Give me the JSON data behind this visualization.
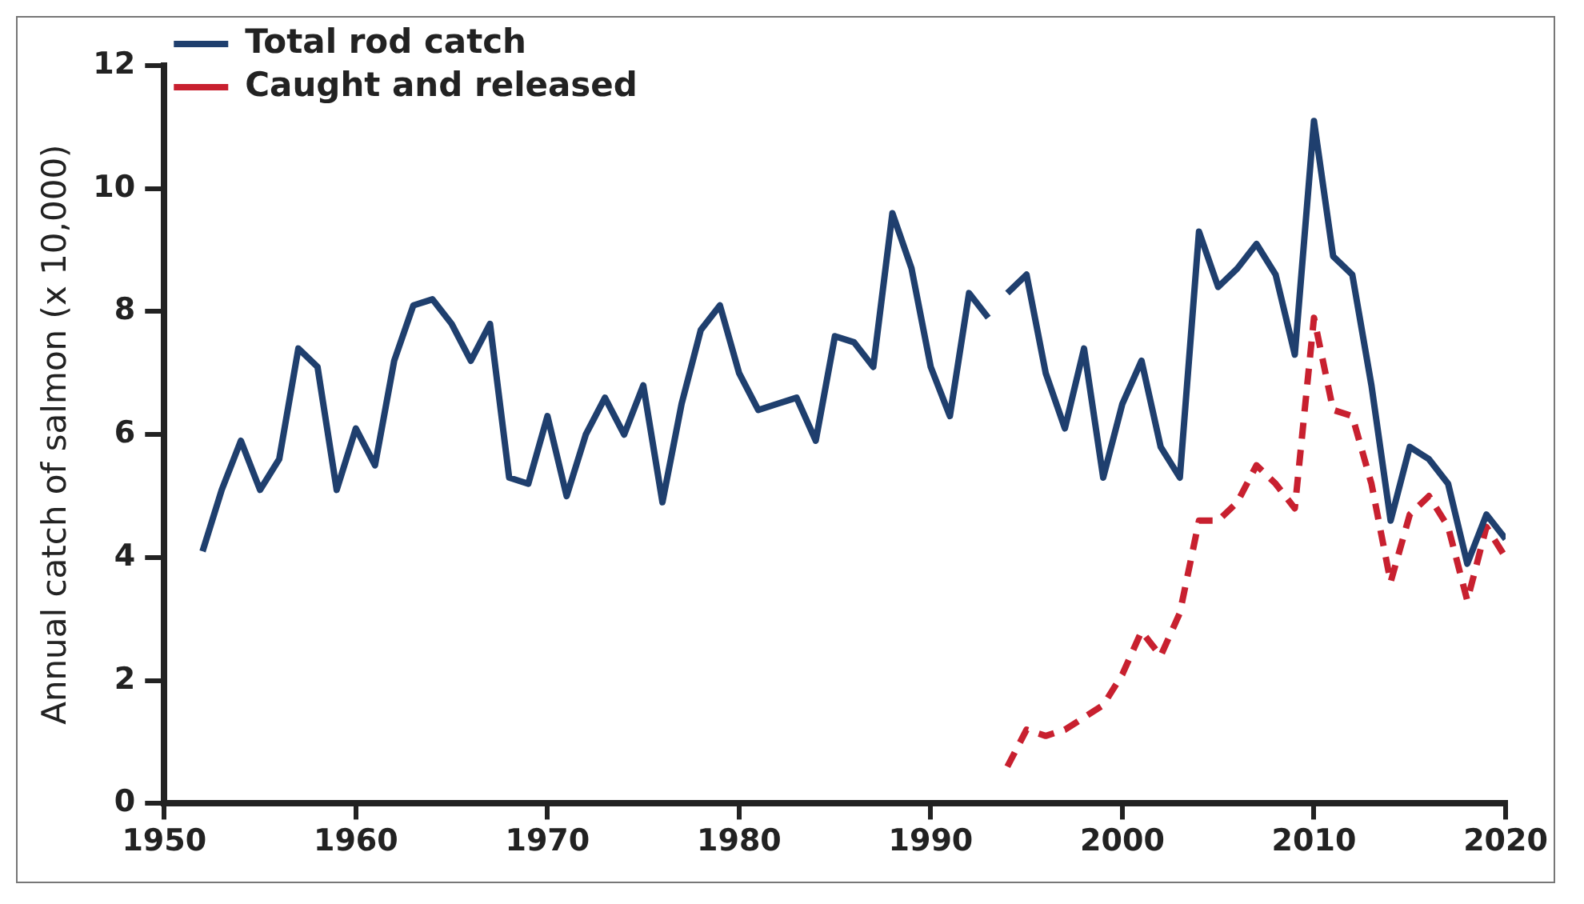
{
  "chart_data": {
    "type": "line",
    "ylabel": "Annual catch of salmon (x 10,000)",
    "xlim": [
      1950,
      2020
    ],
    "xticks": [
      1950,
      1960,
      1970,
      1980,
      1990,
      2000,
      2010,
      2020
    ],
    "ylim": [
      0,
      12
    ],
    "yticks": [
      0,
      2,
      4,
      6,
      8,
      10,
      12
    ],
    "grid": false,
    "legend": "top left",
    "marker": "none",
    "series": [
      {
        "name": "Total rod catch",
        "color": "#1f3f6e",
        "line_style": "solid",
        "x": [
          1952,
          1953,
          1954,
          1955,
          1956,
          1957,
          1958,
          1959,
          1960,
          1961,
          1962,
          1963,
          1964,
          1965,
          1966,
          1967,
          1968,
          1969,
          1970,
          1971,
          1972,
          1973,
          1974,
          1975,
          1976,
          1977,
          1978,
          1979,
          1980,
          1981,
          1982,
          1983,
          1984,
          1985,
          1986,
          1987,
          1988,
          1989,
          1990,
          1991,
          1992,
          1993,
          1993.5,
          1994,
          1995,
          1996,
          1997,
          1998,
          1999,
          2000,
          2001,
          2002,
          2003,
          2004,
          2005,
          2006,
          2007,
          2008,
          2009,
          2010,
          2011,
          2012,
          2013,
          2014,
          2015,
          2016,
          2017,
          2018,
          2019,
          2020
        ],
        "values": [
          4.1,
          5.1,
          5.9,
          5.1,
          5.6,
          7.4,
          7.1,
          5.1,
          6.1,
          5.5,
          7.2,
          8.1,
          8.2,
          7.8,
          7.2,
          7.8,
          5.3,
          5.2,
          6.3,
          5.0,
          6.0,
          6.6,
          6.0,
          6.8,
          4.9,
          6.5,
          7.7,
          8.1,
          7.0,
          6.4,
          6.5,
          6.6,
          5.9,
          7.6,
          7.5,
          7.1,
          9.6,
          8.7,
          7.1,
          6.3,
          8.3,
          7.9,
          null,
          8.3,
          8.6,
          7.0,
          6.1,
          7.4,
          5.3,
          6.5,
          7.2,
          5.8,
          5.3,
          9.3,
          8.4,
          8.7,
          9.1,
          8.6,
          7.3,
          11.1,
          8.9,
          8.6,
          6.8,
          4.6,
          5.8,
          5.6,
          5.2,
          3.9,
          4.7,
          4.3
        ]
      },
      {
        "name": "Caught and released",
        "color": "#c8202f",
        "line_style": "dashed",
        "x": [
          1994,
          1995,
          1996,
          1997,
          1998,
          1999,
          2000,
          2001,
          2002,
          2003,
          2004,
          2005,
          2006,
          2007,
          2008,
          2009,
          2010,
          2011,
          2012,
          2013,
          2014,
          2015,
          2016,
          2017,
          2018,
          2019,
          2020
        ],
        "values": [
          0.6,
          1.2,
          1.1,
          1.2,
          1.4,
          1.6,
          2.1,
          2.8,
          2.4,
          3.1,
          4.6,
          4.6,
          4.9,
          5.5,
          5.2,
          4.8,
          7.9,
          6.4,
          6.3,
          5.2,
          3.6,
          4.7,
          5.0,
          4.5,
          3.3,
          4.5,
          4.0
        ]
      }
    ]
  }
}
